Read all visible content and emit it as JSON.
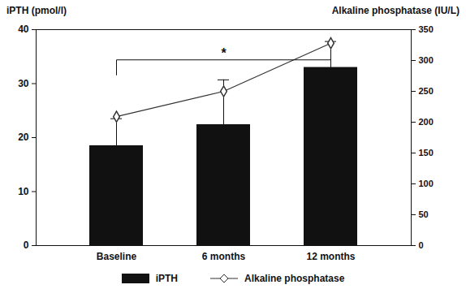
{
  "chart_data": {
    "type": "bar",
    "categories": [
      "Baseline",
      "6 months",
      "12 months"
    ],
    "ylabel": "iPTH (pmol/l)",
    "y2label": "Alkaline phosphatase (IU/L)",
    "ylim": [
      0,
      40
    ],
    "yticks": [
      0,
      10,
      20,
      30,
      40
    ],
    "y2lim": [
      0,
      350
    ],
    "y2ticks": [
      0,
      50,
      100,
      150,
      200,
      250,
      300,
      350
    ],
    "legend": "bottom",
    "series": [
      {
        "name": "iPTH",
        "type": "bar",
        "color": "#111111",
        "values": [
          18.5,
          22.4,
          33.0
        ],
        "errors": [
          5.0,
          8.3,
          4.8
        ]
      },
      {
        "name": "Alkaline phosphatase",
        "type": "line",
        "axis": "y2",
        "color": "#333333",
        "marker": "diamond",
        "values": [
          209,
          250,
          328
        ]
      }
    ],
    "annotations": [
      {
        "text": "*",
        "from": "Baseline",
        "to": "12 months"
      }
    ]
  }
}
